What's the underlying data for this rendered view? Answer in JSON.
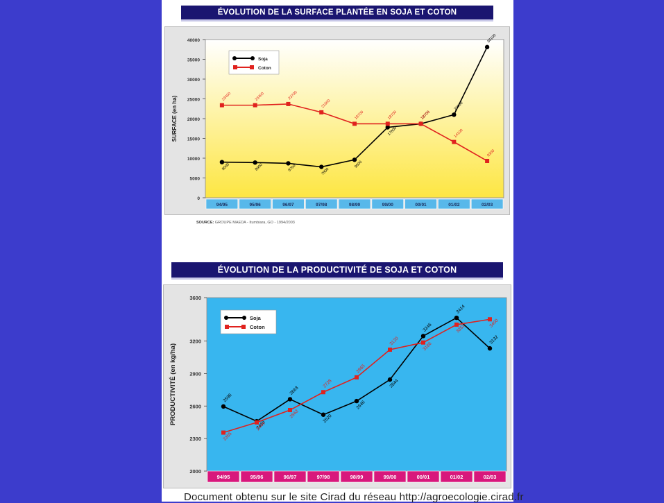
{
  "top_title": "ÉVOLUTION DE LA SURFACE PLANTÉE EN SOJA ET COTON",
  "bottom_title": "ÉVOLUTION DE LA PRODUCTIVITÉ DE SOJA ET COTON",
  "source_label": "SOURCE:",
  "source_text": "GROUPE MAEDA - Itumbiara, GO - 1994/2003",
  "footer_text": "Document obtenu sur le site Cirad du réseau http://agroecologie.cirad.fr",
  "colors": {
    "soja": "#000000",
    "coton": "#e0221e",
    "top_bg_top": "#ffffff",
    "top_bg_bottom": "#fde642",
    "bottom_bg": "#38b6ef",
    "top_axis_band": "#58b8ea",
    "bottom_axis_band": "#d8187c"
  },
  "chart_data": [
    {
      "type": "line",
      "title": "ÉVOLUTION DE LA SURFACE PLANTÉE EN SOJA ET COTON",
      "ylabel": "SURFACE (en ha)",
      "xlabel": "",
      "ylim": [
        0,
        40000
      ],
      "yticks": [
        0,
        5000,
        10000,
        15000,
        20000,
        25000,
        30000,
        35000,
        40000
      ],
      "categories": [
        "94/95",
        "95/96",
        "96/97",
        "97/98",
        "98/99",
        "99/00",
        "00/01",
        "01/02",
        "02/03"
      ],
      "legend_position": "top-left",
      "grid": false,
      "series": [
        {
          "name": "Soja",
          "color": "#000000",
          "values": [
            9000,
            8900,
            8700,
            7800,
            9600,
            17800,
            18700,
            21000,
            38100
          ]
        },
        {
          "name": "Coton",
          "color": "#e0221e",
          "values": [
            23400,
            23400,
            23700,
            21600,
            18700,
            18700,
            18700,
            14100,
            9300
          ]
        }
      ]
    },
    {
      "type": "line",
      "title": "ÉVOLUTION DE LA PRODUCTIVITÉ DE SOJA ET COTON",
      "ylabel": "PRODUCTIVITÉ (en kg/ha)",
      "xlabel": "",
      "ylim": [
        2000,
        3600
      ],
      "yticks": [
        2000,
        2300,
        2600,
        2900,
        3200,
        3600
      ],
      "categories": [
        "94/95",
        "95/96",
        "96/97",
        "97/98",
        "98/99",
        "99/00",
        "00/01",
        "01/02",
        "02/03"
      ],
      "legend_position": "top-left",
      "grid": false,
      "series": [
        {
          "name": "Soja",
          "color": "#000000",
          "values": [
            2596,
            2460,
            2663,
            2520,
            2646,
            2844,
            3246,
            3414,
            3132
          ]
        },
        {
          "name": "Coton",
          "color": "#e0221e",
          "values": [
            2355,
            2449,
            2563,
            2728,
            2865,
            3120,
            3186,
            3351,
            3400
          ]
        }
      ]
    }
  ]
}
